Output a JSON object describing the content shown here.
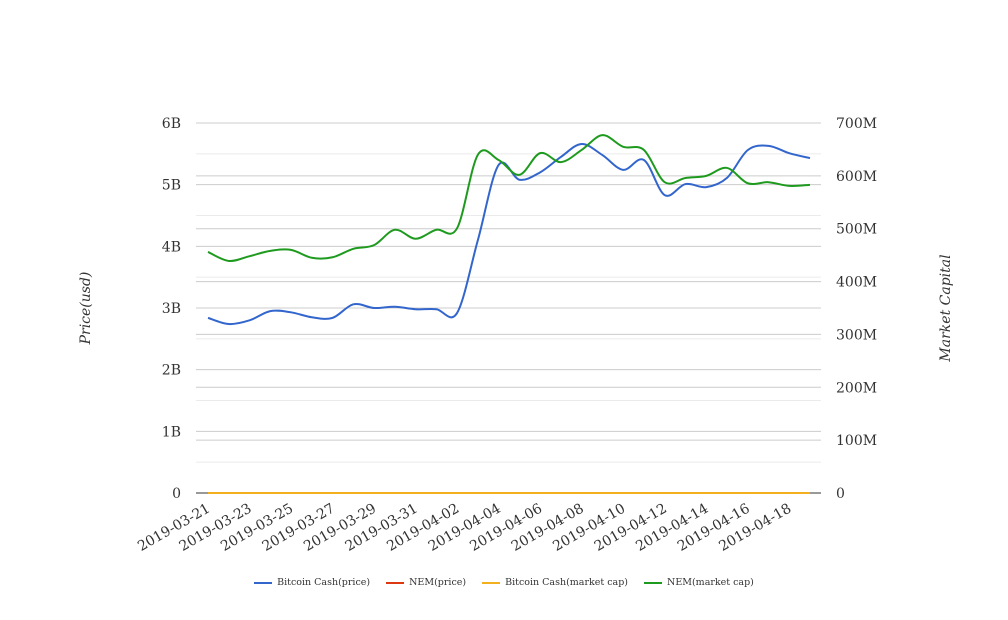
{
  "chart_data": {
    "type": "line",
    "x": [
      "2019-03-21",
      "2019-03-22",
      "2019-03-23",
      "2019-03-24",
      "2019-03-25",
      "2019-03-26",
      "2019-03-27",
      "2019-03-28",
      "2019-03-29",
      "2019-03-30",
      "2019-03-31",
      "2019-04-01",
      "2019-04-02",
      "2019-04-03",
      "2019-04-04",
      "2019-04-05",
      "2019-04-06",
      "2019-04-07",
      "2019-04-08",
      "2019-04-09",
      "2019-04-10",
      "2019-04-11",
      "2019-04-12",
      "2019-04-13",
      "2019-04-14",
      "2019-04-15",
      "2019-04-16",
      "2019-04-17",
      "2019-04-18",
      "2019-04-19"
    ],
    "x_tick_labels": [
      "2019-03-21",
      "2019-03-23",
      "2019-03-25",
      "2019-03-27",
      "2019-03-29",
      "2019-03-31",
      "2019-04-02",
      "2019-04-04",
      "2019-04-06",
      "2019-04-08",
      "2019-04-10",
      "2019-04-12",
      "2019-04-14",
      "2019-04-16",
      "2019-04-18"
    ],
    "ylabel_left": "Price(usd)",
    "ylabel_right": "Market Capital",
    "ylim_left": [
      0,
      6000000000
    ],
    "ylim_right": [
      0,
      700000000
    ],
    "yticks_left": [
      "0",
      "1B",
      "2B",
      "3B",
      "4B",
      "5B",
      "6B"
    ],
    "yticks_right": [
      "0",
      "100M",
      "200M",
      "300M",
      "400M",
      "500M",
      "600M",
      "700M"
    ],
    "legend_position": "bottom",
    "series": [
      {
        "name": "Bitcoin Cash(price)",
        "axis": "left",
        "color": "#3366cc",
        "values": [
          2840000000.0,
          2740000000.0,
          2800000000.0,
          2950000000.0,
          2930000000.0,
          2850000000.0,
          2840000000.0,
          3060000000.0,
          3000000000.0,
          3020000000.0,
          2980000000.0,
          2980000000.0,
          2920000000.0,
          4100000000.0,
          5320000000.0,
          5080000000.0,
          5200000000.0,
          5450000000.0,
          5660000000.0,
          5480000000.0,
          5240000000.0,
          5400000000.0,
          4830000000.0,
          5010000000.0,
          4960000000.0,
          5110000000.0,
          5560000000.0,
          5630000000.0,
          5510000000.0,
          5430000000.0
        ]
      },
      {
        "name": "NEM(price)",
        "axis": "left",
        "color": "#dc3912",
        "values": [
          0,
          0,
          0,
          0,
          0,
          0,
          0,
          0,
          0,
          0,
          0,
          0,
          0,
          0,
          0,
          0,
          0,
          0,
          0,
          0,
          0,
          0,
          0,
          0,
          0,
          0,
          0,
          0,
          0,
          0
        ]
      },
      {
        "name": "Bitcoin Cash(market cap)",
        "axis": "right",
        "color": "#f2b01e",
        "values": [
          0,
          0,
          0,
          0,
          0,
          0,
          0,
          0,
          0,
          0,
          0,
          0,
          0,
          0,
          0,
          0,
          0,
          0,
          0,
          0,
          0,
          0,
          0,
          0,
          0,
          0,
          0,
          0,
          0,
          0
        ]
      },
      {
        "name": "NEM(market cap)",
        "axis": "right",
        "color": "#1e9a1e",
        "values": [
          456000000.0,
          439000000.0,
          448000000.0,
          458000000.0,
          460000000.0,
          445000000.0,
          446000000.0,
          462000000.0,
          469000000.0,
          498000000.0,
          481000000.0,
          498000000.0,
          501000000.0,
          640000000.0,
          630000000.0,
          602000000.0,
          643000000.0,
          626000000.0,
          649000000.0,
          677000000.0,
          655000000.0,
          649000000.0,
          588000000.0,
          596000000.0,
          600000000.0,
          615000000.0,
          586000000.0,
          588000000.0,
          581000000.0,
          583000000.0
        ]
      }
    ]
  }
}
